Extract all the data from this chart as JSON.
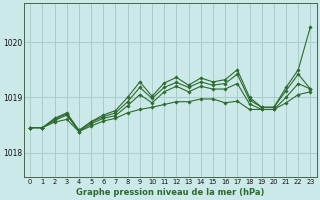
{
  "xlabel": "Graphe pression niveau de la mer (hPa)",
  "background_color": "#cce9e9",
  "grid_color": "#aacccc",
  "line_color": "#2d6a2d",
  "ylim": [
    1017.55,
    1020.7
  ],
  "yticks": [
    1018,
    1019,
    1020
  ],
  "xlim": [
    -0.5,
    23.5
  ],
  "xticks": [
    0,
    1,
    2,
    3,
    4,
    5,
    6,
    7,
    8,
    9,
    10,
    11,
    12,
    13,
    14,
    15,
    16,
    17,
    18,
    19,
    20,
    21,
    22,
    23
  ],
  "series": [
    [
      1018.45,
      1018.45,
      1018.55,
      1018.6,
      1018.38,
      1018.48,
      1018.57,
      1018.62,
      1018.72,
      1018.78,
      1018.82,
      1018.87,
      1018.92,
      1018.92,
      1018.97,
      1018.97,
      1018.9,
      1018.93,
      1018.78,
      1018.78,
      1018.78,
      1018.9,
      1019.05,
      1019.1
    ],
    [
      1018.45,
      1018.45,
      1018.58,
      1018.68,
      1018.38,
      1018.52,
      1018.62,
      1018.67,
      1018.85,
      1019.05,
      1018.9,
      1019.1,
      1019.2,
      1019.1,
      1019.2,
      1019.15,
      1019.15,
      1019.25,
      1018.88,
      1018.78,
      1018.78,
      1019.0,
      1019.25,
      1019.15
    ],
    [
      1018.45,
      1018.45,
      1018.6,
      1018.7,
      1018.4,
      1018.55,
      1018.65,
      1018.72,
      1018.92,
      1019.18,
      1018.98,
      1019.18,
      1019.27,
      1019.18,
      1019.28,
      1019.22,
      1019.25,
      1019.42,
      1018.95,
      1018.82,
      1018.82,
      1019.12,
      1019.42,
      1019.15
    ],
    [
      1018.45,
      1018.45,
      1018.62,
      1018.72,
      1018.4,
      1018.56,
      1018.68,
      1018.76,
      1019.0,
      1019.28,
      1019.02,
      1019.26,
      1019.36,
      1019.22,
      1019.35,
      1019.28,
      1019.32,
      1019.5,
      1019.0,
      1018.82,
      1018.82,
      1019.18,
      1019.5,
      1020.28
    ]
  ]
}
